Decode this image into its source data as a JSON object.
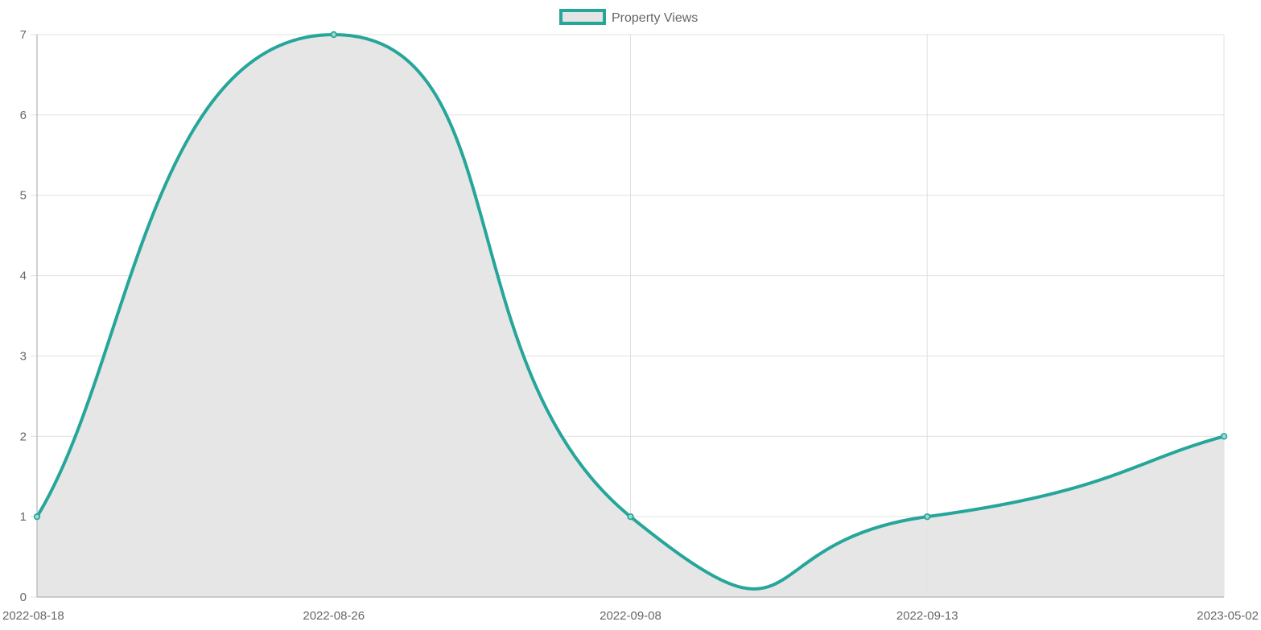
{
  "chart_data": {
    "type": "area",
    "categories": [
      "2022-08-18",
      "2022-08-26",
      "2022-09-08",
      "2022-09-13",
      "2023-05-02"
    ],
    "series": [
      {
        "name": "Property Views",
        "values": [
          1,
          7,
          1,
          1,
          2
        ]
      }
    ],
    "ylim": [
      0,
      7
    ],
    "yticks": [
      0,
      1,
      2,
      3,
      4,
      5,
      6,
      7
    ],
    "grid": true,
    "legend": "top-center",
    "line_color": "#26A69A",
    "fill_color": "#e4e4e4"
  }
}
